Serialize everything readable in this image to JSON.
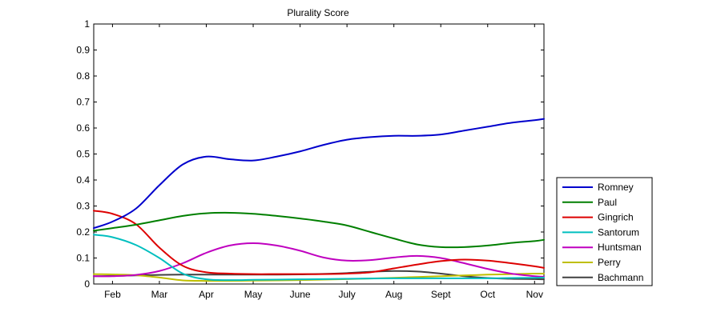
{
  "chart_data": {
    "type": "line",
    "title": "Plurality Score",
    "xlabel": "",
    "ylabel": "",
    "ylim": [
      0,
      1
    ],
    "yticks": [
      0,
      0.1,
      0.2,
      0.3,
      0.4,
      0.5,
      0.6,
      0.7,
      0.8,
      0.9,
      1
    ],
    "ytick_labels": [
      "0",
      "0.1",
      "0.2",
      "0.3",
      "0.4",
      "0.5",
      "0.6",
      "0.7",
      "0.8",
      "0.9",
      "1"
    ],
    "xlim": [
      0.6,
      10.2
    ],
    "xticks": [
      1,
      2,
      3,
      4,
      5,
      6,
      7,
      8,
      9,
      10
    ],
    "xtick_labels": [
      "Feb",
      "Mar",
      "Apr",
      "May",
      "June",
      "July",
      "Aug",
      "Sept",
      "Oct",
      "Nov"
    ],
    "grid": false,
    "legend_position": "outside-bottom-right",
    "series": [
      {
        "name": "Romney",
        "color": "#0000cc",
        "x": [
          0.6,
          1.0,
          1.5,
          2.0,
          2.5,
          3.0,
          3.5,
          4.0,
          4.5,
          5.0,
          5.5,
          6.0,
          6.5,
          7.0,
          7.5,
          8.0,
          8.5,
          9.0,
          9.5,
          10.0,
          10.2
        ],
        "y": [
          0.215,
          0.24,
          0.29,
          0.38,
          0.46,
          0.49,
          0.48,
          0.475,
          0.49,
          0.51,
          0.535,
          0.555,
          0.565,
          0.57,
          0.57,
          0.575,
          0.59,
          0.605,
          0.62,
          0.63,
          0.635
        ]
      },
      {
        "name": "Paul",
        "color": "#007f00",
        "x": [
          0.6,
          1.0,
          1.5,
          2.0,
          2.5,
          3.0,
          3.5,
          4.0,
          4.5,
          5.0,
          5.5,
          6.0,
          6.5,
          7.0,
          7.5,
          8.0,
          8.5,
          9.0,
          9.5,
          10.0,
          10.2
        ],
        "y": [
          0.205,
          0.215,
          0.228,
          0.245,
          0.262,
          0.272,
          0.274,
          0.27,
          0.262,
          0.252,
          0.24,
          0.225,
          0.2,
          0.175,
          0.152,
          0.142,
          0.142,
          0.148,
          0.158,
          0.165,
          0.17
        ]
      },
      {
        "name": "Gingrich",
        "color": "#dd0000",
        "x": [
          0.6,
          1.0,
          1.5,
          2.0,
          2.5,
          3.0,
          3.5,
          4.0,
          4.5,
          5.0,
          5.5,
          6.0,
          6.5,
          7.0,
          7.5,
          8.0,
          8.5,
          9.0,
          9.5,
          10.0,
          10.2
        ],
        "y": [
          0.282,
          0.27,
          0.23,
          0.14,
          0.07,
          0.045,
          0.04,
          0.038,
          0.038,
          0.038,
          0.038,
          0.04,
          0.045,
          0.06,
          0.075,
          0.088,
          0.094,
          0.09,
          0.08,
          0.068,
          0.062
        ]
      },
      {
        "name": "Santorum",
        "color": "#00bfbf",
        "x": [
          0.6,
          1.0,
          1.5,
          2.0,
          2.5,
          3.0,
          3.5,
          4.0,
          4.5,
          5.0,
          5.5,
          6.0,
          6.5,
          7.0,
          7.5,
          8.0,
          8.5,
          9.0,
          9.5,
          10.0,
          10.2
        ],
        "y": [
          0.19,
          0.18,
          0.15,
          0.1,
          0.04,
          0.018,
          0.015,
          0.016,
          0.017,
          0.018,
          0.019,
          0.02,
          0.021,
          0.022,
          0.022,
          0.022,
          0.022,
          0.022,
          0.023,
          0.024,
          0.025
        ]
      },
      {
        "name": "Huntsman",
        "color": "#bf00bf",
        "x": [
          0.6,
          1.0,
          1.5,
          2.0,
          2.5,
          3.0,
          3.5,
          4.0,
          4.5,
          5.0,
          5.5,
          6.0,
          6.5,
          7.0,
          7.5,
          8.0,
          8.5,
          9.0,
          9.5,
          10.0,
          10.2
        ],
        "y": [
          0.03,
          0.03,
          0.035,
          0.05,
          0.08,
          0.12,
          0.148,
          0.157,
          0.148,
          0.128,
          0.102,
          0.09,
          0.092,
          0.102,
          0.108,
          0.1,
          0.08,
          0.058,
          0.04,
          0.03,
          0.028
        ]
      },
      {
        "name": "Perry",
        "color": "#bfbf00",
        "x": [
          0.6,
          1.0,
          1.5,
          2.0,
          2.5,
          3.0,
          3.5,
          4.0,
          4.5,
          5.0,
          5.5,
          6.0,
          6.5,
          7.0,
          7.5,
          8.0,
          8.5,
          9.0,
          9.5,
          10.0,
          10.2
        ],
        "y": [
          0.038,
          0.037,
          0.034,
          0.025,
          0.014,
          0.012,
          0.012,
          0.013,
          0.014,
          0.015,
          0.017,
          0.019,
          0.021,
          0.024,
          0.027,
          0.03,
          0.033,
          0.036,
          0.038,
          0.04,
          0.04
        ]
      },
      {
        "name": "Bachmann",
        "color": "#404040",
        "x": [
          0.6,
          1.0,
          1.5,
          2.0,
          2.5,
          3.0,
          3.5,
          4.0,
          4.5,
          5.0,
          5.5,
          6.0,
          6.5,
          7.0,
          7.5,
          8.0,
          8.5,
          9.0,
          9.5,
          10.0,
          10.2
        ],
        "y": [
          0.03,
          0.031,
          0.033,
          0.035,
          0.036,
          0.036,
          0.036,
          0.036,
          0.036,
          0.037,
          0.039,
          0.042,
          0.047,
          0.05,
          0.048,
          0.04,
          0.03,
          0.023,
          0.02,
          0.019,
          0.018
        ]
      }
    ]
  }
}
